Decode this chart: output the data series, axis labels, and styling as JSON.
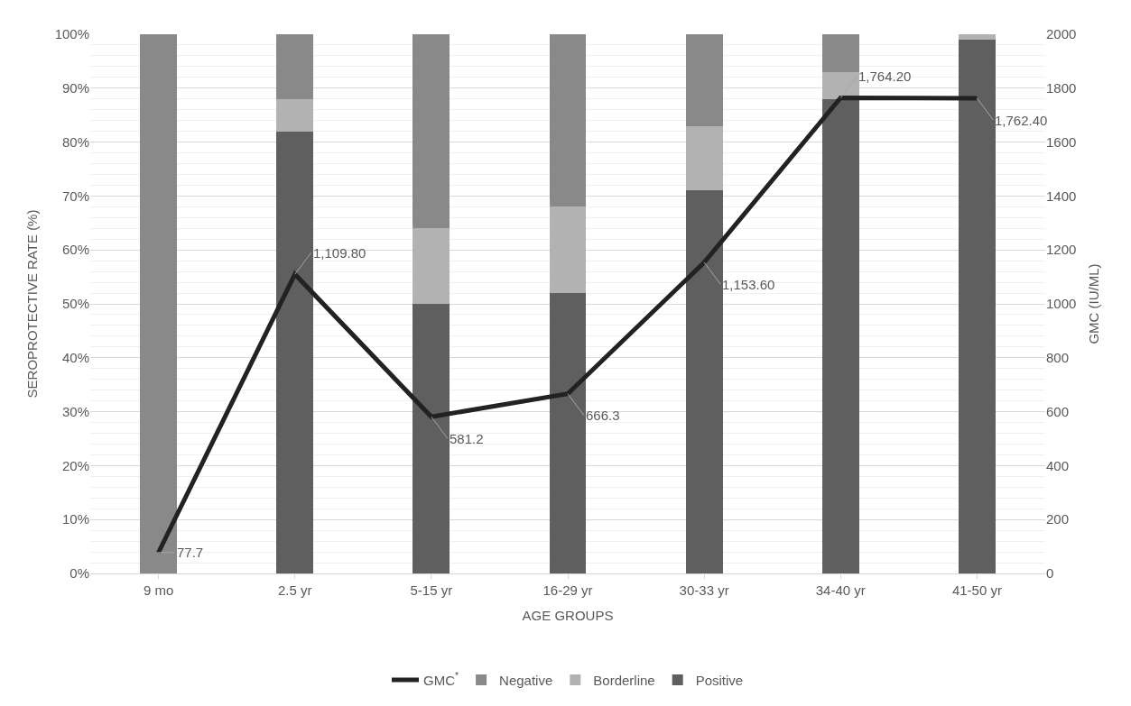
{
  "chart_data": {
    "type": "bar",
    "stacked": true,
    "xlabel": "AGE GROUPS",
    "ylabel": "SEROPROTECTIVE RATE (%)",
    "y2label": "GMC (IU/ML)",
    "categories": [
      "9 mo",
      "2.5 yr",
      "5-15 yr",
      "16-29 yr",
      "30-33 yr",
      "34-40 yr",
      "41-50 yr"
    ],
    "series": [
      {
        "name": "Positive",
        "color": "#5f5f5f",
        "values": [
          0,
          82,
          50,
          52,
          71,
          88,
          99
        ]
      },
      {
        "name": "Borderline",
        "color": "#b2b2b2",
        "values": [
          0,
          6,
          14,
          16,
          12,
          5,
          1
        ]
      },
      {
        "name": "Negative",
        "color": "#898989",
        "values": [
          100,
          12,
          36,
          32,
          17,
          7,
          0
        ]
      },
      {
        "name": "GMC$^{*}$",
        "type": "line",
        "axis": "y2",
        "color": "#222222",
        "values": [
          77.7,
          1109.8,
          581.2,
          666.3,
          1153.6,
          1764.2,
          1762.4
        ],
        "value_labels": [
          "77.7",
          "1,109.80",
          "581.2",
          "666.3",
          "1,153.60",
          "1,764.20",
          "1,762.40"
        ]
      }
    ],
    "ylim": [
      0,
      100
    ],
    "yticks": [
      {
        "value": 0,
        "label": "0%"
      },
      {
        "value": 10,
        "label": "10%"
      },
      {
        "value": 20,
        "label": "20%"
      },
      {
        "value": 30,
        "label": "30%"
      },
      {
        "value": 40,
        "label": "40%"
      },
      {
        "value": 50,
        "label": "50%"
      },
      {
        "value": 60,
        "label": "60%"
      },
      {
        "value": 70,
        "label": "70%"
      },
      {
        "value": 80,
        "label": "80%"
      },
      {
        "value": 90,
        "label": "90%"
      },
      {
        "value": 100,
        "label": "100%"
      }
    ],
    "y2lim": [
      0,
      2000
    ],
    "y2ticks": [
      0,
      200,
      400,
      600,
      800,
      1000,
      1200,
      1400,
      1600,
      1800,
      2000
    ],
    "grid": "y",
    "legend": "bottom",
    "marker": "none",
    "line_style": "solid"
  }
}
